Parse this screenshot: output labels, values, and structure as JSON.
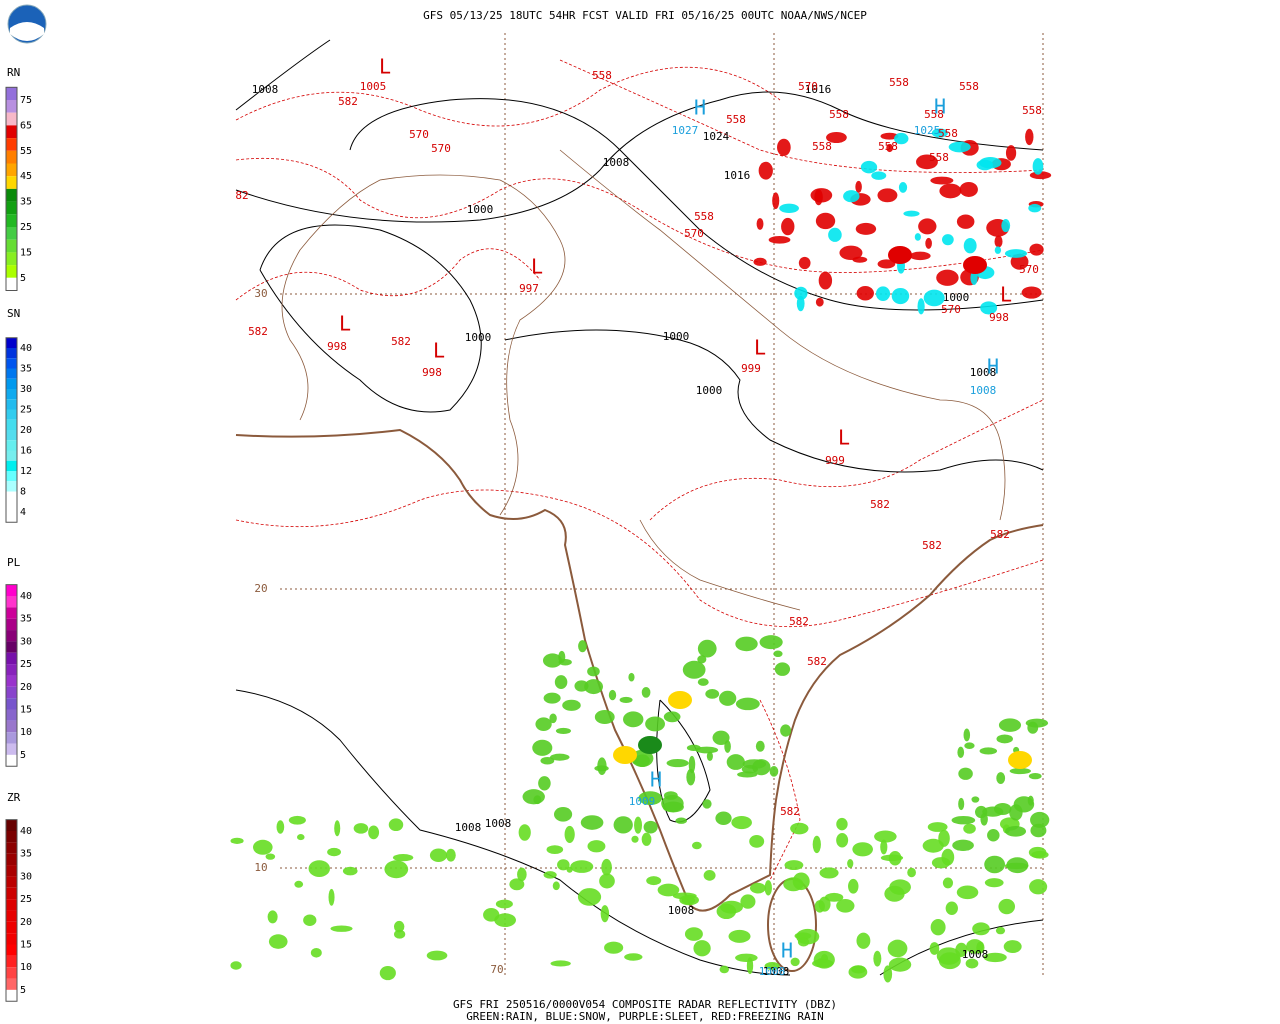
{
  "header": {
    "title": "GFS 05/13/25 18UTC 54HR FCST VALID FRI 05/16/25 00UTC NOAA/NWS/NCEP"
  },
  "legend": [
    {
      "label": "RN",
      "levels": [
        "75",
        "65",
        "55",
        "45",
        "35",
        "25",
        "15",
        "5"
      ]
    },
    {
      "label": "SN",
      "levels": [
        "40",
        "35",
        "30",
        "25",
        "20",
        "16",
        "12",
        "8",
        "4"
      ]
    },
    {
      "label": "PL",
      "levels": [
        "40",
        "35",
        "30",
        "25",
        "20",
        "15",
        "10",
        "5"
      ]
    },
    {
      "label": "ZR",
      "levels": [
        "40",
        "35",
        "30",
        "25",
        "20",
        "15",
        "10",
        "5"
      ]
    }
  ],
  "map": {
    "grid_labels": [
      "30",
      "20",
      "10",
      "70"
    ],
    "pressure_labels": [
      "1008",
      "1016",
      "1024",
      "1008",
      "1016",
      "1000",
      "1000",
      "1000",
      "1000",
      "1000",
      "1008",
      "1008",
      "1008",
      "1008",
      "1008",
      "1008"
    ],
    "height_labels": [
      "582",
      "1005",
      "570",
      "570",
      "558",
      "570",
      "558",
      "558",
      "558",
      "558",
      "558",
      "558",
      "558",
      "558",
      "558",
      "558",
      "558",
      "570",
      "82",
      "997",
      "582",
      "998",
      "582",
      "998",
      "999",
      "999",
      "582",
      "582",
      "582",
      "570",
      "570",
      "998",
      "582",
      "582",
      "582"
    ],
    "low_labels": [
      "L",
      "L",
      "L",
      "L",
      "L",
      "L",
      "L"
    ],
    "high_labels": [
      "H",
      "H",
      "H",
      "H",
      "H"
    ],
    "high_values": [
      "1027",
      "1025",
      "1009",
      "1008",
      "1008"
    ]
  },
  "footer": {
    "line1": "GFS FRI 250516/0000V054 COMPOSITE RADAR REFLECTIVITY (DBZ)",
    "line2": "GREEN:RAIN, BLUE:SNOW, PURPLE:SLEET, RED:FREEZING RAIN"
  }
}
